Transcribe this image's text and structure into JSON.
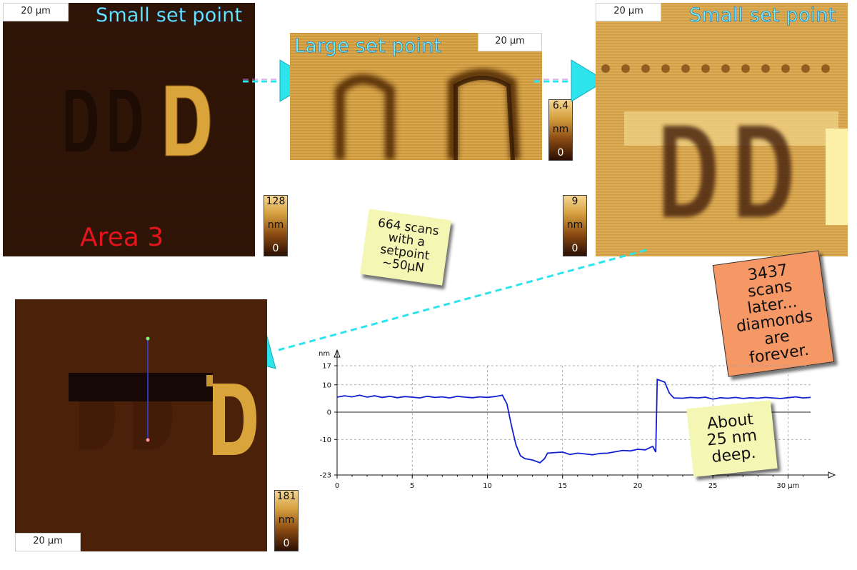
{
  "panels": {
    "top_left": {
      "scale": "20 µm",
      "title": "Small set point",
      "area_label": "Area 3",
      "cbar": {
        "max": "128",
        "unit": "nm",
        "min": "0"
      }
    },
    "top_middle": {
      "scale": "20 µm",
      "title": "Large set point",
      "cbar": {
        "max": "6.4",
        "unit": "nm",
        "min": "0"
      }
    },
    "top_right": {
      "scale": "20 µm",
      "title": "Small set point",
      "cbar": {
        "max": "9",
        "unit": "nm",
        "min": "0"
      }
    },
    "bottom_left": {
      "scale": "20 µm",
      "cbar": {
        "max": "181",
        "unit": "nm",
        "min": "0"
      }
    }
  },
  "notes": {
    "scans_664": "664 scans with a setpoint ~50µN",
    "scans_3437": "3437 scans later... diamonds are forever.",
    "depth": "About 25 nm deep."
  },
  "colors": {
    "afm_dark": "#2c1305",
    "afm_gold": "#d9a43a",
    "profile_line": "#1020d0",
    "arrow": "#2de3ec",
    "note_yellow": "#f4f7b4",
    "note_orange": "#f59866"
  },
  "chart_data": {
    "type": "line",
    "xlabel": "µm",
    "ylabel": "nm",
    "xlim": [
      0,
      31.5
    ],
    "ylim": [
      -23,
      17
    ],
    "x_ticks": [
      0,
      5,
      10,
      15,
      20,
      25,
      30
    ],
    "x_tick_labels": [
      "0",
      "5",
      "10",
      "15",
      "20",
      "25",
      "30 µm"
    ],
    "y_ticks": [
      17,
      10,
      0,
      -10,
      -23
    ],
    "y_tick_labels": [
      "17",
      "10",
      "0",
      "-10",
      "-23"
    ],
    "grid": true,
    "series": [
      {
        "x": [
          0,
          0.5,
          1,
          1.5,
          2,
          2.5,
          3,
          3.5,
          4,
          4.5,
          5,
          5.5,
          6,
          6.5,
          7,
          7.5,
          8,
          8.5,
          9,
          9.5,
          10,
          10.5,
          11,
          11.3,
          11.6,
          11.9,
          12.2,
          12.5,
          13,
          13.5,
          13.8,
          14,
          14.5,
          15,
          15.5,
          16,
          16.5,
          17,
          17.5,
          18,
          18.5,
          19,
          19.5,
          20,
          20.5,
          21,
          21.2,
          21.3,
          21.8,
          22.1,
          22.4,
          23,
          23.5,
          24,
          24.5,
          25,
          25.5,
          26,
          26.5,
          27,
          27.5,
          28,
          28.5,
          29,
          29.5,
          30,
          30.5,
          31,
          31.5
        ],
        "y": [
          5.5,
          6,
          5.6,
          6.2,
          5.5,
          6,
          5.4,
          5.8,
          5.3,
          5.7,
          5.5,
          5.2,
          5.8,
          5.4,
          5.6,
          5.2,
          5.8,
          5.5,
          5.3,
          5.6,
          5.4,
          5.7,
          6.2,
          3,
          -5,
          -12,
          -16,
          -17,
          -17.5,
          -18.5,
          -17,
          -15,
          -14.8,
          -14.6,
          -15.5,
          -15,
          -15.3,
          -15.6,
          -15.1,
          -15,
          -14.5,
          -14,
          -14.2,
          -13.6,
          -13.8,
          -12.5,
          -14.6,
          12,
          11,
          7,
          5.2,
          5.1,
          5.4,
          5.2,
          5.5,
          4.8,
          5.3,
          5.1,
          5.4,
          5,
          5.3,
          5.1,
          5.4,
          5.2,
          5,
          5.3,
          5.6,
          5.2,
          5.4
        ]
      }
    ]
  }
}
